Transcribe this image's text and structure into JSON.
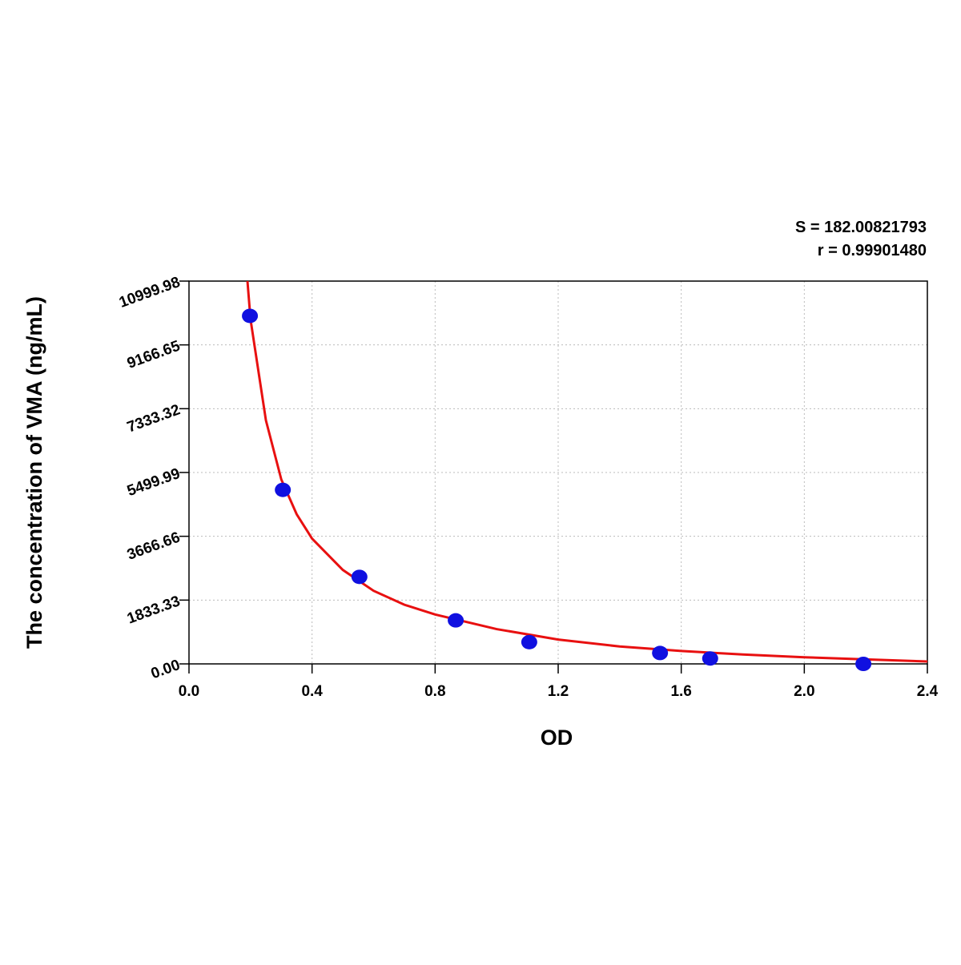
{
  "chart_data": {
    "type": "scatter",
    "x_label": "OD",
    "y_label": "The concentration of VMA (ng/mL)",
    "annotations": [
      "S = 182.00821793",
      "r = 0.99901480"
    ],
    "series": [
      {
        "color": "#1010e0",
        "x": [
          0.198,
          0.305,
          0.554,
          0.867,
          1.106,
          1.531,
          1.694,
          2.192
        ],
        "values": [
          10000,
          5000,
          2500,
          1250,
          625,
          312.5,
          156,
          0
        ]
      }
    ],
    "curve": {
      "color": "#e81010",
      "x": [
        0.19,
        0.2,
        0.25,
        0.3,
        0.35,
        0.4,
        0.5,
        0.6,
        0.7,
        0.8,
        1.0,
        1.2,
        1.4,
        1.6,
        1.8,
        2.0,
        2.2,
        2.4
      ],
      "y": [
        11000,
        9900,
        7000,
        5300,
        4300,
        3600,
        2700,
        2100,
        1700,
        1420,
        1000,
        700,
        500,
        370,
        270,
        190,
        130,
        70
      ]
    },
    "xlim": [
      0,
      2.4
    ],
    "xticks": [
      {
        "value": 0,
        "label": "0.0"
      },
      0.4,
      0.8,
      1.2,
      1.6,
      {
        "value": 2,
        "label": "2.0"
      },
      2.4
    ],
    "ylim": [
      0,
      10999.98
    ],
    "yticks": [
      {
        "value": 0,
        "label": "0.00"
      },
      1833.33,
      3666.66,
      5499.99,
      7333.32,
      9166.65,
      10999.98
    ],
    "grid": true
  }
}
